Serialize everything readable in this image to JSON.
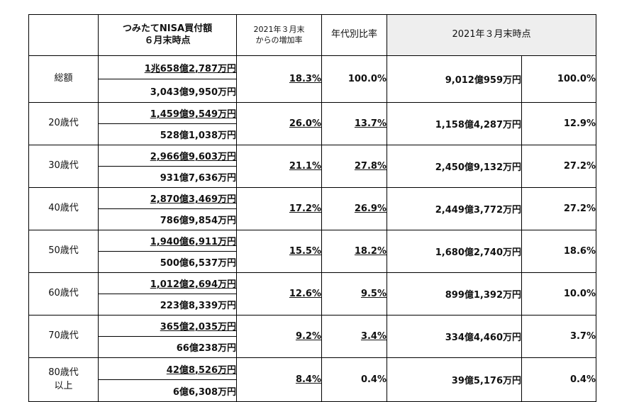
{
  "headers": {
    "age": "",
    "buy_line1": "つみたてNISA買付額",
    "buy_line2": "６月末時点",
    "growth_line1": "2021年３月末",
    "growth_line2": "からの増加率",
    "share": "年代別比率",
    "march": "2021年３月末時点"
  },
  "rows": [
    {
      "label1": "総額",
      "label2": "",
      "buy": "1兆658億2,787万円",
      "count": "3,043億9,950万円",
      "growth": "18.3%",
      "share": "100.0%",
      "share_ul": false,
      "march_buy": "9,012億959万円",
      "march_share": "100.0%"
    },
    {
      "label1": "20歳代",
      "label2": "",
      "buy": "1,459億9,549万円",
      "count": "528億1,038万円",
      "growth": "26.0%",
      "share": "13.7%",
      "share_ul": true,
      "march_buy": "1,158億4,287万円",
      "march_share": "12.9%"
    },
    {
      "label1": "30歳代",
      "label2": "",
      "buy": "2,966億9,603万円",
      "count": "931億7,636万円",
      "growth": "21.1%",
      "share": "27.8%",
      "share_ul": true,
      "march_buy": "2,450億9,132万円",
      "march_share": "27.2%"
    },
    {
      "label1": "40歳代",
      "label2": "",
      "buy": "2,870億3,469万円",
      "count": "786億9,854万円",
      "growth": "17.2%",
      "share": "26.9%",
      "share_ul": true,
      "march_buy": "2,449億3,772万円",
      "march_share": "27.2%"
    },
    {
      "label1": "50歳代",
      "label2": "",
      "buy": "1,940億6,911万円",
      "count": "500億6,537万円",
      "growth": "15.5%",
      "share": "18.2%",
      "share_ul": true,
      "march_buy": "1,680億2,740万円",
      "march_share": "18.6%"
    },
    {
      "label1": "60歳代",
      "label2": "",
      "buy": "1,012億2,694万円",
      "count": "223億8,339万円",
      "growth": "12.6%",
      "share": "9.5%",
      "share_ul": true,
      "march_buy": "899億1,392万円",
      "march_share": "10.0%"
    },
    {
      "label1": "70歳代",
      "label2": "",
      "buy": "365億2,035万円",
      "count": "66億238万円",
      "growth": "9.2%",
      "share": "3.4%",
      "share_ul": true,
      "march_buy": "334億4,460万円",
      "march_share": "3.7%"
    },
    {
      "label1": "80歳代",
      "label2": "以上",
      "buy": "42億8,526万円",
      "count": "6億6,308万円",
      "growth": "8.4%",
      "share": "0.4%",
      "share_ul": false,
      "march_buy": "39億5,176万円",
      "march_share": "0.4%"
    }
  ]
}
